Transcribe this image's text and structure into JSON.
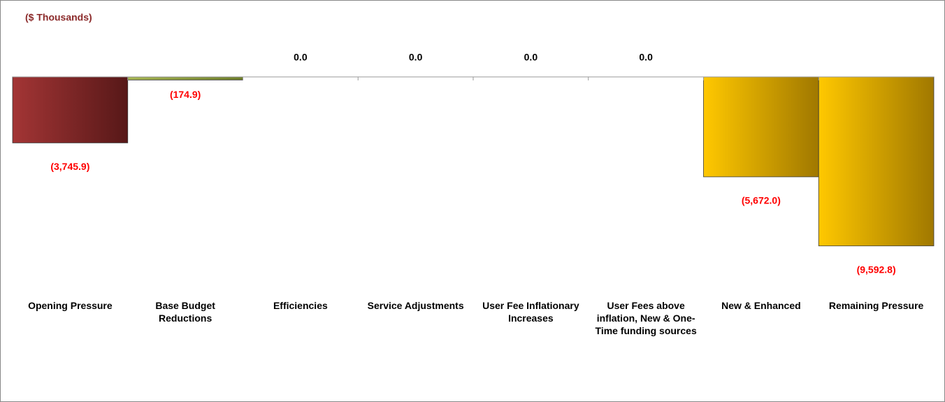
{
  "chart_data": {
    "type": "bar",
    "title": "($ Thousands)",
    "categories": [
      "Opening Pressure",
      "Base Budget Reductions",
      "Efficiencies",
      "Service Adjustments",
      "User Fee Inflationary Increases",
      "User Fees above inflation, New & One-Time funding sources",
      "New & Enhanced",
      "Remaining Pressure"
    ],
    "values": [
      -3745.9,
      -174.9,
      0,
      0,
      0,
      0,
      -5672.0,
      -9592.8
    ],
    "value_labels": [
      "(3,745.9)",
      "(174.9)",
      "0.0",
      "0.0",
      "0.0",
      "0.0",
      "(5,672.0)",
      "(9,592.8)"
    ],
    "colors": [
      "#9b2f2f",
      "#8c9e3c",
      "#8c9e3c",
      "#8c9e3c",
      "#8c9e3c",
      "#8c9e3c",
      "#f5c000",
      "#f5c000"
    ],
    "ylim": [
      -10000,
      0
    ]
  }
}
